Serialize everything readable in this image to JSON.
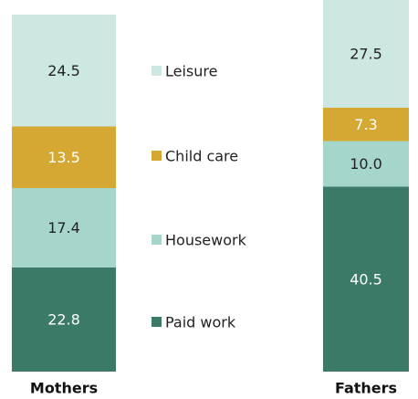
{
  "chart_data": {
    "type": "stacked_bar",
    "categories": [
      "Mothers",
      "Fathers"
    ],
    "series": [
      {
        "name": "Paid work",
        "color": "#3b7a68",
        "values": [
          22.8,
          40.5
        ]
      },
      {
        "name": "Housework",
        "color": "#a6d6cb",
        "values": [
          17.4,
          10
        ],
        "value_labels": [
          "17.4",
          "10.0"
        ]
      },
      {
        "name": "Child care",
        "color": "#d4a833",
        "values": [
          13.5,
          7.3
        ]
      },
      {
        "name": "Leisure",
        "color": "#cde8e3",
        "values": [
          24.5,
          27.5
        ]
      }
    ]
  }
}
